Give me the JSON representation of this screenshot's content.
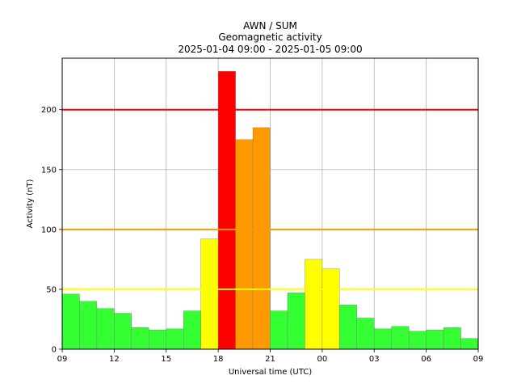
{
  "chart_data": {
    "type": "bar",
    "title": [
      "AWN / SUM",
      "Geomagnetic activity",
      "2025-01-04 09:00 - 2025-01-05 09:00"
    ],
    "xlabel": "Universal time (UTC)",
    "ylabel": "Activity (nT)",
    "categories": [
      "09",
      "10",
      "11",
      "12",
      "13",
      "14",
      "15",
      "16",
      "17",
      "18",
      "19",
      "20",
      "21",
      "22",
      "23",
      "00",
      "01",
      "02",
      "03",
      "04",
      "05",
      "06",
      "07",
      "08"
    ],
    "values": [
      46,
      40,
      34,
      30,
      18,
      16,
      17,
      32,
      92,
      232,
      175,
      185,
      32,
      47,
      75,
      67,
      37,
      26,
      17,
      19,
      15,
      16,
      18,
      9
    ],
    "bar_colors": [
      "#33ff33",
      "#33ff33",
      "#33ff33",
      "#33ff33",
      "#33ff33",
      "#33ff33",
      "#33ff33",
      "#33ff33",
      "#ffff00",
      "#ff0000",
      "#ff9900",
      "#ff9900",
      "#33ff33",
      "#33ff33",
      "#ffff00",
      "#ffff00",
      "#33ff33",
      "#33ff33",
      "#33ff33",
      "#33ff33",
      "#33ff33",
      "#33ff33",
      "#33ff33",
      "#33ff33"
    ],
    "xticks": [
      "09",
      "12",
      "15",
      "18",
      "21",
      "00",
      "03",
      "06",
      "09"
    ],
    "ylim": [
      0,
      243
    ],
    "yticks": [
      0,
      50,
      100,
      150,
      200
    ],
    "thresholds": [
      {
        "value": 50,
        "color": "#ffff00"
      },
      {
        "value": 100,
        "color": "#ff9900"
      },
      {
        "value": 200,
        "color": "#ff0000"
      }
    ],
    "grid": true
  }
}
